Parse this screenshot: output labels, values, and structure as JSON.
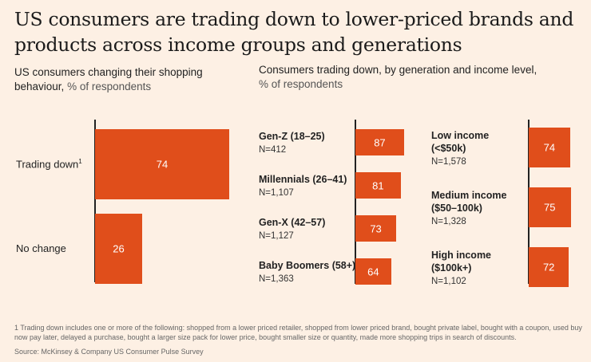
{
  "title": "US consumers are trading down to lower-priced brands and products across income groups and generations",
  "left_subtitle": {
    "main": "US consumers changing their shopping behaviour,",
    "unit": "% of respondents"
  },
  "right_subtitle": {
    "main": "Consumers trading down, by generation and income level,",
    "unit": "% of respondents"
  },
  "footnote": "1 Trading down includes one or more of the following: shopped from a lower priced retailer, shopped from lower priced brand, bought private label, bought with a coupon, used buy now pay later, delayed a purchase, bought a larger size pack for lower price, bought smaller size or quantity, made more shopping trips in search of discounts.",
  "source": "Source: McKinsey & Company US Consumer Pulse Survey",
  "colors": {
    "bar": "#e04e1b",
    "background": "#fdf0e4"
  },
  "chart_data": [
    {
      "type": "bar",
      "orientation": "horizontal",
      "title": "US consumers changing their shopping behaviour, % of respondents",
      "categories": [
        "Trading down",
        "No change"
      ],
      "category_footnote_marks": [
        "1",
        ""
      ],
      "values": [
        74,
        26
      ]
    },
    {
      "type": "bar",
      "orientation": "horizontal",
      "title": "Consumers trading down, by generation and income level, % of respondents",
      "categories": [
        "Gen-Z (18–25)",
        "Millennials (26–41)",
        "Gen-X (42–57)",
        "Baby Boomers (58+)"
      ],
      "sample_sizes": [
        "N=412",
        "N=1,107",
        "N=1,127",
        "N=1,363"
      ],
      "values": [
        87,
        81,
        73,
        64
      ]
    },
    {
      "type": "bar",
      "orientation": "horizontal",
      "title": "Consumers trading down, by generation and income level, % of respondents",
      "categories": [
        "Low income (<$50k)",
        "Medium income ($50–100k)",
        "High income ($100k+)"
      ],
      "category_lines": [
        [
          "Low income",
          "(<$50k)"
        ],
        [
          "Medium income",
          "($50–100k)"
        ],
        [
          "High income",
          "($100k+)"
        ]
      ],
      "sample_sizes": [
        "N=1,578",
        "N=1,328",
        "N=1,102"
      ],
      "values": [
        74,
        75,
        72
      ]
    }
  ]
}
